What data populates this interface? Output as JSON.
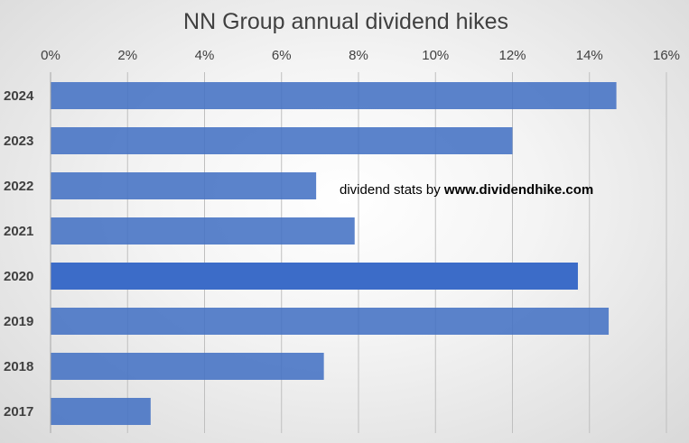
{
  "chart_data": {
    "type": "bar",
    "orientation": "horizontal",
    "title": "NN Group annual dividend hikes",
    "xlabel": "",
    "ylabel": "",
    "categories": [
      "2024",
      "2023",
      "2022",
      "2021",
      "2020",
      "2019",
      "2018",
      "2017"
    ],
    "values": [
      14.7,
      12.0,
      6.9,
      7.9,
      13.7,
      14.5,
      7.1,
      2.6
    ],
    "xlim": [
      0,
      16
    ],
    "x_ticks": [
      "0%",
      "2%",
      "4%",
      "6%",
      "8%",
      "10%",
      "12%",
      "14%",
      "16%"
    ],
    "x_axis_position": "top",
    "grid": true,
    "legend": "none",
    "bar_color": "#4472C4",
    "highlight_color": "#3C6CC8",
    "highlight_category": "2020",
    "annotation": {
      "prefix": "dividend stats by ",
      "site": "www.dividendhike.com"
    }
  }
}
